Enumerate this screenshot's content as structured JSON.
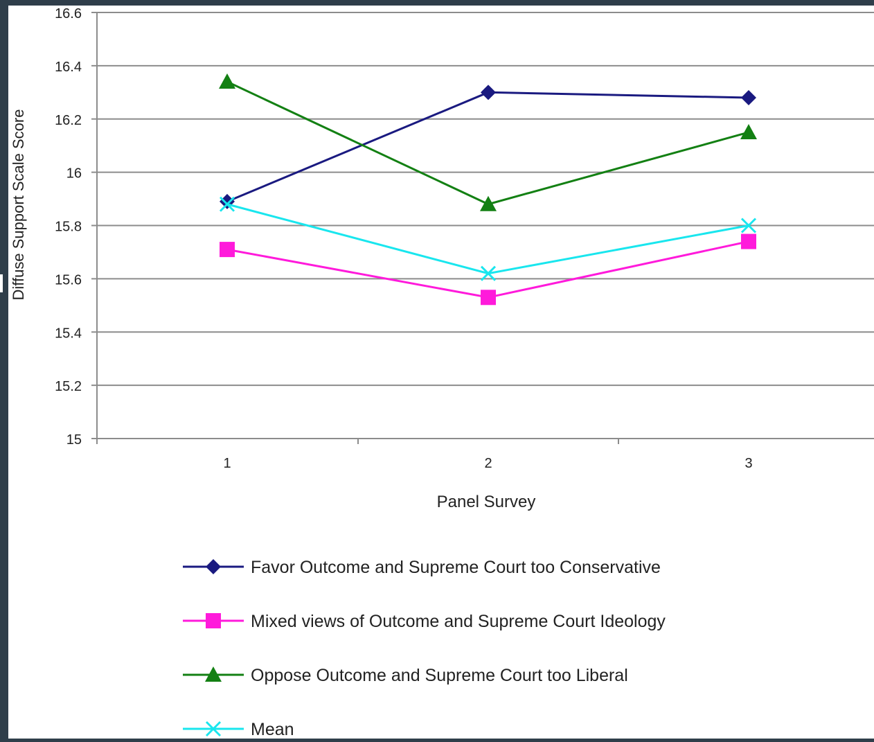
{
  "chart_data": {
    "type": "line",
    "title": "",
    "xlabel": "Panel Survey",
    "ylabel": "Diffuse Support Scale Score",
    "x": [
      1,
      2,
      3
    ],
    "x_tick_labels": [
      "1",
      "2",
      "3"
    ],
    "ylim": [
      15,
      16.6
    ],
    "y_ticks": [
      15,
      15.2,
      15.4,
      15.6,
      15.8,
      16,
      16.2,
      16.4,
      16.6
    ],
    "y_tick_labels": [
      "15",
      "15.2",
      "15.4",
      "15.6",
      "15.8",
      "16",
      "16.2",
      "16.4",
      "16.6"
    ],
    "grid": true,
    "legend_position": "bottom",
    "series": [
      {
        "name": "Favor Outcome and Supreme Court too Conservative",
        "values": [
          15.89,
          16.3,
          16.28
        ],
        "color": "#1a1a80",
        "marker": "diamond"
      },
      {
        "name": "Mixed views of Outcome and Supreme Court Ideology",
        "values": [
          15.71,
          15.53,
          15.74
        ],
        "color": "#ff1adb",
        "marker": "square"
      },
      {
        "name": "Oppose Outcome and Supreme Court too Liberal",
        "values": [
          16.34,
          15.88,
          16.15
        ],
        "color": "#138013",
        "marker": "triangle"
      },
      {
        "name": "Mean",
        "values": [
          15.88,
          15.62,
          15.8
        ],
        "color": "#19e6ee",
        "marker": "x"
      }
    ]
  }
}
